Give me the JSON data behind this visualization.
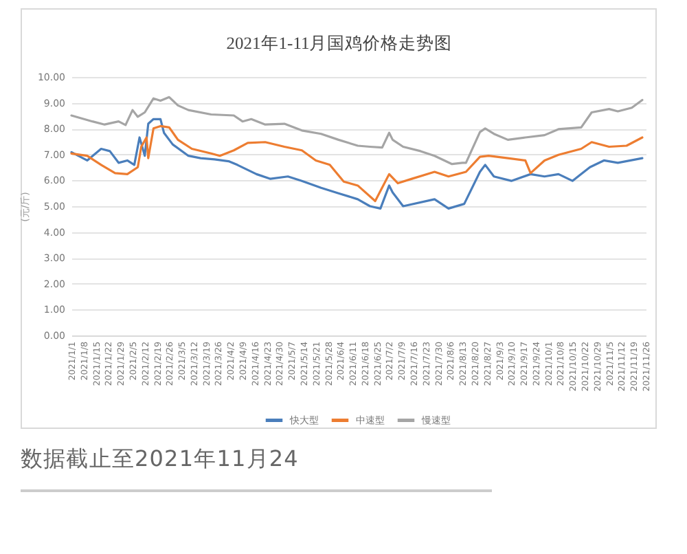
{
  "chart_data": {
    "type": "line",
    "title": "2021年1-11月国鸡价格走势图",
    "ylabel": "(元/斤)",
    "annotations": [
      "数据截止至2021年11月24"
    ],
    "xlim": [
      "2021-01-01",
      "2021-11-26"
    ],
    "xticks": [
      {
        "value": "2021-01-01",
        "label": "2021/1/1"
      },
      {
        "value": "2021-01-08",
        "label": "2021/1/8"
      },
      {
        "value": "2021-01-15",
        "label": "2021/1/15"
      },
      {
        "value": "2021-01-22",
        "label": "2021/1/22"
      },
      {
        "value": "2021-01-29",
        "label": "2021/1/29"
      },
      {
        "value": "2021-02-05",
        "label": "2021/2/5"
      },
      {
        "value": "2021-02-12",
        "label": "2021/2/12"
      },
      {
        "value": "2021-02-19",
        "label": "2021/2/19"
      },
      {
        "value": "2021-02-26",
        "label": "2021/2/26"
      },
      {
        "value": "2021-03-05",
        "label": "2021/3/5"
      },
      {
        "value": "2021-03-12",
        "label": "2021/3/12"
      },
      {
        "value": "2021-03-19",
        "label": "2021/3/19"
      },
      {
        "value": "2021-03-26",
        "label": "2021/3/26"
      },
      {
        "value": "2021-04-02",
        "label": "2021/4/2"
      },
      {
        "value": "2021-04-09",
        "label": "2021/4/9"
      },
      {
        "value": "2021-04-16",
        "label": "2021/4/16"
      },
      {
        "value": "2021-04-23",
        "label": "2021/4/23"
      },
      {
        "value": "2021-04-30",
        "label": "2021/4/30"
      },
      {
        "value": "2021-05-07",
        "label": "2021/5/7"
      },
      {
        "value": "2021-05-14",
        "label": "2021/5/14"
      },
      {
        "value": "2021-05-21",
        "label": "2021/5/21"
      },
      {
        "value": "2021-05-28",
        "label": "2021/5/28"
      },
      {
        "value": "2021-06-04",
        "label": "2021/6/4"
      },
      {
        "value": "2021-06-11",
        "label": "2021/6/11"
      },
      {
        "value": "2021-06-18",
        "label": "2021/6/18"
      },
      {
        "value": "2021-06-25",
        "label": "2021/6/25"
      },
      {
        "value": "2021-07-02",
        "label": "2021/7/2"
      },
      {
        "value": "2021-07-09",
        "label": "2021/7/9"
      },
      {
        "value": "2021-07-16",
        "label": "2021/7/16"
      },
      {
        "value": "2021-07-23",
        "label": "2021/7/23"
      },
      {
        "value": "2021-07-30",
        "label": "2021/7/30"
      },
      {
        "value": "2021-08-06",
        "label": "2021/8/6"
      },
      {
        "value": "2021-08-13",
        "label": "2021/8/13"
      },
      {
        "value": "2021-08-20",
        "label": "2021/8/20"
      },
      {
        "value": "2021-08-27",
        "label": "2021/8/27"
      },
      {
        "value": "2021-09-03",
        "label": "2021/9/3"
      },
      {
        "value": "2021-09-10",
        "label": "2021/9/10"
      },
      {
        "value": "2021-09-17",
        "label": "2021/9/17"
      },
      {
        "value": "2021-09-24",
        "label": "2021/9/24"
      },
      {
        "value": "2021-10-01",
        "label": "2021/10/1"
      },
      {
        "value": "2021-10-08",
        "label": "2021/10/8"
      },
      {
        "value": "2021-10-15",
        "label": "2021/10/15"
      },
      {
        "value": "2021-10-22",
        "label": "2021/10/22"
      },
      {
        "value": "2021-10-29",
        "label": "2021/10/29"
      },
      {
        "value": "2021-11-05",
        "label": "2021/11/5"
      },
      {
        "value": "2021-11-12",
        "label": "2021/11/12"
      },
      {
        "value": "2021-11-19",
        "label": "2021/11/19"
      },
      {
        "value": "2021-11-26",
        "label": "2021/11/26"
      }
    ],
    "ylim": [
      0,
      10
    ],
    "yticks": [
      {
        "value": 0,
        "label": "0.00"
      },
      {
        "value": 1,
        "label": "1.00"
      },
      {
        "value": 2,
        "label": "2.00"
      },
      {
        "value": 3,
        "label": "3.00"
      },
      {
        "value": 4,
        "label": "4.00"
      },
      {
        "value": 5,
        "label": "5.00"
      },
      {
        "value": 6,
        "label": "6.00"
      },
      {
        "value": 7,
        "label": "7.00"
      },
      {
        "value": 8,
        "label": "8.00"
      },
      {
        "value": 9,
        "label": "9.00"
      },
      {
        "value": 10,
        "label": "10.00"
      }
    ],
    "grid": "y",
    "legend": "bottom",
    "line_style": "solid",
    "series": [
      {
        "name": "快大型",
        "color": "#4a7ebb",
        "x": [
          "2021-01-01",
          "2021-01-10",
          "2021-01-18",
          "2021-01-23",
          "2021-01-28",
          "2021-02-02",
          "2021-02-06",
          "2021-02-09",
          "2021-02-12",
          "2021-02-14",
          "2021-02-17",
          "2021-02-21",
          "2021-02-23",
          "2021-02-28",
          "2021-03-09",
          "2021-03-16",
          "2021-03-24",
          "2021-04-01",
          "2021-04-06",
          "2021-04-17",
          "2021-04-25",
          "2021-05-05",
          "2021-05-13",
          "2021-05-24",
          "2021-06-03",
          "2021-06-14",
          "2021-06-21",
          "2021-06-27",
          "2021-07-02",
          "2021-07-04",
          "2021-07-10",
          "2021-07-28",
          "2021-08-05",
          "2021-08-14",
          "2021-08-23",
          "2021-08-26",
          "2021-08-31",
          "2021-09-10",
          "2021-09-21",
          "2021-09-29",
          "2021-10-07",
          "2021-10-15",
          "2021-10-25",
          "2021-11-02",
          "2021-11-10",
          "2021-11-24"
        ],
        "values": [
          7.09,
          6.77,
          7.22,
          7.13,
          6.68,
          6.77,
          6.6,
          7.66,
          6.95,
          8.19,
          8.37,
          8.37,
          7.84,
          7.39,
          6.95,
          6.86,
          6.81,
          6.74,
          6.6,
          6.24,
          6.06,
          6.15,
          5.98,
          5.71,
          5.5,
          5.27,
          5.0,
          4.91,
          5.8,
          5.53,
          5.0,
          5.27,
          4.91,
          5.09,
          6.33,
          6.6,
          6.15,
          5.98,
          6.24,
          6.15,
          6.24,
          5.98,
          6.51,
          6.77,
          6.68,
          6.86
        ]
      },
      {
        "name": "中速型",
        "color": "#ed7d31",
        "x": [
          "2021-01-01",
          "2021-01-10",
          "2021-01-18",
          "2021-01-26",
          "2021-02-02",
          "2021-02-08",
          "2021-02-10",
          "2021-02-13",
          "2021-02-14",
          "2021-02-17",
          "2021-02-21",
          "2021-02-26",
          "2021-03-03",
          "2021-03-11",
          "2021-03-22",
          "2021-03-27",
          "2021-04-04",
          "2021-04-12",
          "2021-04-22",
          "2021-05-03",
          "2021-05-13",
          "2021-05-21",
          "2021-05-29",
          "2021-06-06",
          "2021-06-14",
          "2021-06-24",
          "2021-07-02",
          "2021-07-07",
          "2021-07-15",
          "2021-07-28",
          "2021-08-05",
          "2021-08-15",
          "2021-08-23",
          "2021-08-28",
          "2021-09-08",
          "2021-09-18",
          "2021-09-21",
          "2021-09-29",
          "2021-10-07",
          "2021-10-20",
          "2021-10-26",
          "2021-11-05",
          "2021-11-15",
          "2021-11-24"
        ],
        "values": [
          7.04,
          6.95,
          6.6,
          6.28,
          6.24,
          6.51,
          7.3,
          7.66,
          6.86,
          8.01,
          8.1,
          8.05,
          7.57,
          7.22,
          7.04,
          6.95,
          7.16,
          7.45,
          7.48,
          7.3,
          7.16,
          6.77,
          6.6,
          5.95,
          5.8,
          5.2,
          6.24,
          5.89,
          6.06,
          6.33,
          6.15,
          6.33,
          6.91,
          6.95,
          6.86,
          6.77,
          6.28,
          6.77,
          6.99,
          7.22,
          7.48,
          7.3,
          7.34,
          7.66
        ]
      },
      {
        "name": "慢速型",
        "color": "#a5a5a5",
        "x": [
          "2021-01-01",
          "2021-01-13",
          "2021-01-20",
          "2021-01-28",
          "2021-02-01",
          "2021-02-05",
          "2021-02-08",
          "2021-02-12",
          "2021-02-17",
          "2021-02-21",
          "2021-02-26",
          "2021-03-03",
          "2021-03-09",
          "2021-03-22",
          "2021-04-04",
          "2021-04-09",
          "2021-04-14",
          "2021-04-22",
          "2021-05-03",
          "2021-05-13",
          "2021-05-24",
          "2021-06-03",
          "2021-06-14",
          "2021-06-21",
          "2021-06-28",
          "2021-07-02",
          "2021-07-04",
          "2021-07-10",
          "2021-07-20",
          "2021-07-28",
          "2021-08-07",
          "2021-08-13",
          "2021-08-15",
          "2021-08-23",
          "2021-08-26",
          "2021-08-31",
          "2021-09-08",
          "2021-09-18",
          "2021-09-29",
          "2021-10-07",
          "2021-10-20",
          "2021-10-26",
          "2021-11-05",
          "2021-11-10",
          "2021-11-18",
          "2021-11-24"
        ],
        "values": [
          8.51,
          8.28,
          8.16,
          8.28,
          8.14,
          8.72,
          8.46,
          8.63,
          9.17,
          9.08,
          9.22,
          8.9,
          8.72,
          8.55,
          8.51,
          8.28,
          8.37,
          8.16,
          8.19,
          7.93,
          7.8,
          7.57,
          7.34,
          7.3,
          7.27,
          7.84,
          7.57,
          7.3,
          7.13,
          6.95,
          6.63,
          6.68,
          6.68,
          7.87,
          8.01,
          7.8,
          7.57,
          7.66,
          7.75,
          7.98,
          8.05,
          8.63,
          8.76,
          8.67,
          8.81,
          9.11
        ]
      }
    ]
  }
}
